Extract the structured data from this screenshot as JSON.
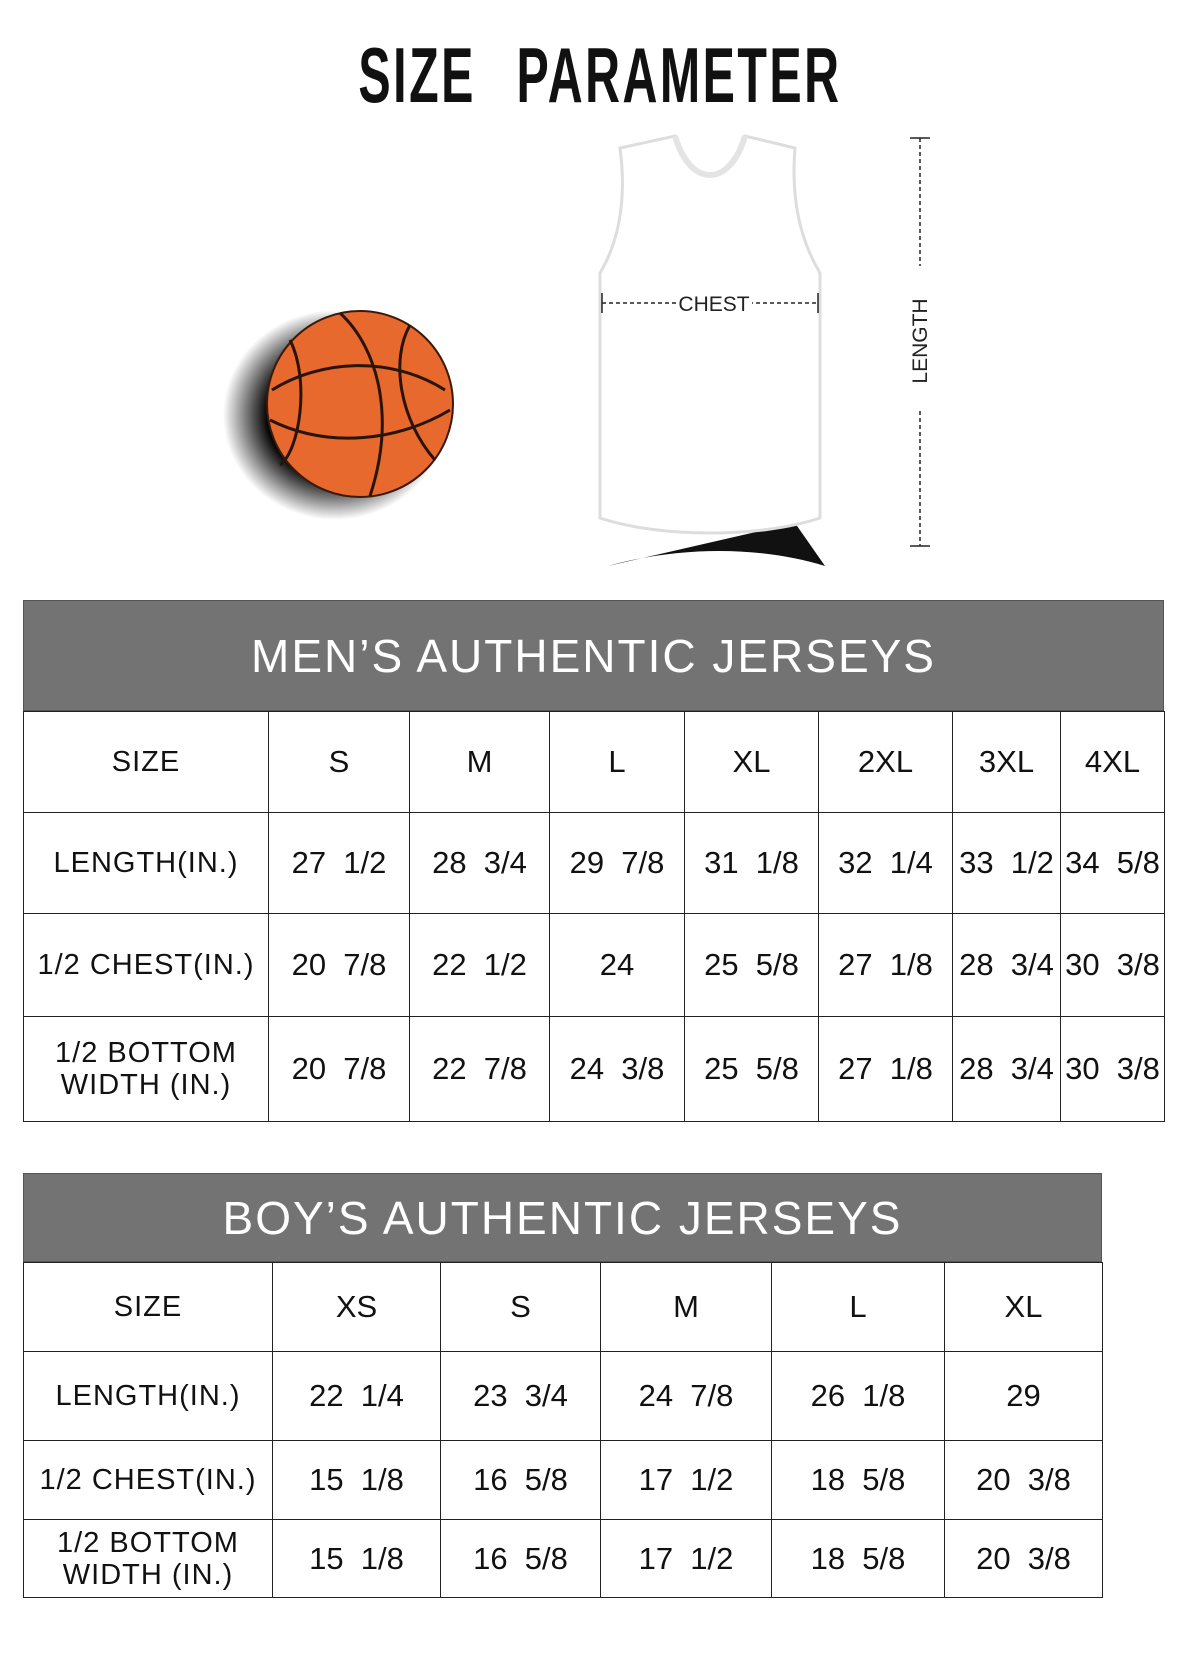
{
  "title": "SIZE PARAMETER",
  "diagram": {
    "chest_label": "CHEST",
    "length_label": "LENGTH",
    "ball_color": "#E8692E"
  },
  "colors": {
    "band": "#737373"
  },
  "mens": {
    "heading": "MEN’S AUTHENTIC JERSEYS",
    "header": [
      "SIZE",
      "S",
      "M",
      "L",
      "XL",
      "2XL",
      "3XL",
      "4XL"
    ],
    "rows": [
      {
        "label": "LENGTH(IN.)",
        "values": [
          "27  1/2",
          "28  3/4",
          "29  7/8",
          "31  1/8",
          "32  1/4",
          "33  1/2",
          "34  5/8"
        ]
      },
      {
        "label": "1/2 CHEST(IN.)",
        "values": [
          "20  7/8",
          "22  1/2",
          "24",
          "25  5/8",
          "27  1/8",
          "28  3/4",
          "30  3/8"
        ]
      },
      {
        "label": "1/2 BOTTOM WIDTH  (IN.)",
        "values": [
          "20  7/8",
          "22  7/8",
          "24  3/8",
          "25  5/8",
          "27  1/8",
          "28  3/4",
          "30  3/8"
        ]
      }
    ]
  },
  "boys": {
    "heading": "BOY’S AUTHENTIC JERSEYS",
    "header": [
      "SIZE",
      "XS",
      "S",
      "M",
      "L",
      "XL"
    ],
    "rows": [
      {
        "label": "LENGTH(IN.)",
        "values": [
          "22  1/4",
          "23  3/4",
          "24  7/8",
          "26  1/8",
          "29"
        ]
      },
      {
        "label": "1/2 CHEST(IN.)",
        "values": [
          "15  1/8",
          "16  5/8",
          "17  1/2",
          "18  5/8",
          "20  3/8"
        ]
      },
      {
        "label": "1/2 BOTTOM WIDTH  (IN.)",
        "values": [
          "15  1/8",
          "16  5/8",
          "17  1/2",
          "18  5/8",
          "20  3/8"
        ]
      }
    ]
  }
}
